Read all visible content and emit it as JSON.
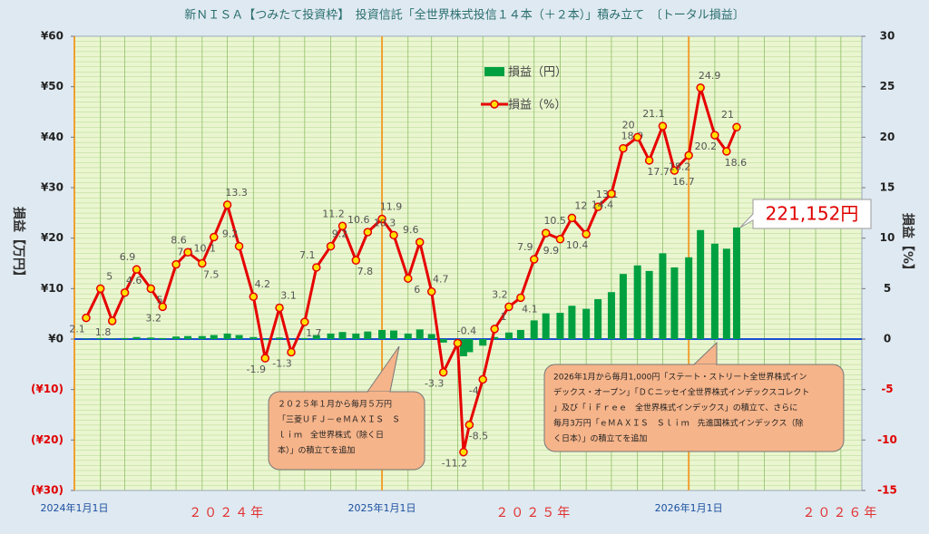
{
  "chart_data": {
    "type": "bar_line",
    "title": "新ＮＩＳＡ【つみたて投資枠】　投資信託「全世界株式投信１４本（＋２本）」積み立て　〔トータル損益〕",
    "y_label": "損益【万円】",
    "y2_label": "損益【%】",
    "x": [
      "2024-01-15",
      "2024-02-01",
      "2024-02-15",
      "2024-03-01",
      "2024-03-15",
      "2024-04-01",
      "2024-04-15",
      "2024-05-01",
      "2024-05-15",
      "2024-06-01",
      "2024-06-15",
      "2024-07-01",
      "2024-07-15",
      "2024-08-01",
      "2024-08-15",
      "2024-09-01",
      "2024-09-15",
      "2024-10-01",
      "2024-10-15",
      "2024-11-01",
      "2024-11-15",
      "2024-12-01",
      "2024-12-15",
      "2025-01-01",
      "2025-01-15",
      "2025-02-01",
      "2025-02-15",
      "2025-03-01",
      "2025-03-15",
      "2025-04-01",
      "2025-04-08",
      "2025-04-15",
      "2025-05-01",
      "2025-05-15",
      "2025-06-01",
      "2025-06-15",
      "2025-07-01",
      "2025-07-15",
      "2025-08-01",
      "2025-08-15",
      "2025-09-01",
      "2025-09-15",
      "2025-10-01",
      "2025-10-15",
      "2025-11-01",
      "2025-11-15",
      "2025-12-01",
      "2025-12-15",
      "2026-01-01",
      "2026-01-15",
      "2026-02-01",
      "2026-02-15",
      "2026-02-27"
    ],
    "series": [
      {
        "name": "損益（円）",
        "color": "#00a040",
        "axis": "y",
        "values": [
          0.1,
          0.2,
          0.1,
          0.2,
          0.4,
          0.3,
          0.2,
          0.5,
          0.6,
          0.6,
          0.8,
          1.1,
          0.8,
          0.4,
          -0.2,
          0.3,
          -0.1,
          0.2,
          0.8,
          1.1,
          1.4,
          1.1,
          1.5,
          1.8,
          1.7,
          1.1,
          1.9,
          1.0,
          -0.7,
          -0.1,
          -3.4,
          -2.6,
          -1.3,
          0.4,
          1.3,
          1.8,
          3.7,
          5.1,
          5.2,
          6.6,
          6.0,
          7.9,
          9.3,
          12.9,
          14.6,
          13.5,
          17.0,
          14.2,
          16.2,
          21.6,
          18.9,
          17.9,
          22.1152
        ]
      },
      {
        "name": "損益（%）",
        "color": "#e60000",
        "axis": "y2",
        "values": [
          2.1,
          5.0,
          1.8,
          4.6,
          6.9,
          5.0,
          3.2,
          7.4,
          8.6,
          7.5,
          10.1,
          13.3,
          9.2,
          4.2,
          -1.9,
          3.1,
          -1.3,
          1.7,
          7.1,
          9.2,
          11.2,
          7.8,
          10.6,
          11.9,
          10.3,
          6.0,
          9.6,
          4.7,
          -3.3,
          -0.4,
          -11.2,
          -8.5,
          -4.0,
          1.0,
          3.2,
          4.1,
          7.9,
          10.5,
          9.9,
          12.0,
          10.4,
          13.1,
          14.4,
          18.9,
          20.0,
          17.7,
          21.1,
          16.7,
          18.2,
          24.9,
          20.2,
          18.6,
          21.0
        ]
      }
    ],
    "xlim": [
      "2024-01-01",
      "2026-07-26"
    ],
    "xticks": [
      {
        "value": "2024-01-01",
        "label": "2024年1月1日"
      },
      {
        "value": "2025-01-01",
        "label": "2025年1月1日"
      },
      {
        "value": "2026-01-01",
        "label": "2026年1月1日"
      }
    ],
    "year_ticks": [
      {
        "value": "2024-07-01",
        "label": "２０２４年"
      },
      {
        "value": "2025-07-01",
        "label": "２０２５年"
      },
      {
        "value": "2026-07-01",
        "label": "２０２６年"
      }
    ],
    "ylim": [
      -30,
      60
    ],
    "yticks": [
      {
        "value": 60,
        "label": "¥60"
      },
      {
        "value": 50,
        "label": "¥50"
      },
      {
        "value": 40,
        "label": "¥40"
      },
      {
        "value": 30,
        "label": "¥30"
      },
      {
        "value": 20,
        "label": "¥20"
      },
      {
        "value": 10,
        "label": "¥10"
      },
      {
        "value": 0,
        "label": "¥0"
      },
      {
        "value": -10,
        "label": "(¥10)"
      },
      {
        "value": -20,
        "label": "(¥20)"
      },
      {
        "value": -30,
        "label": "(¥30)"
      }
    ],
    "y2lim": [
      -15,
      30
    ],
    "y2ticks": [
      30,
      25,
      20,
      15,
      10,
      5,
      0,
      -5,
      -10,
      -15
    ],
    "annotations": [
      {
        "lines": [
          "２０２５年１月から毎月５万円",
          "「三菱ＵＦＪ－ｅＭＡＸＩＳ　Ｓ",
          "ｌｉｍ　全世界株式（除く日",
          "本）」の積立てを追加"
        ]
      },
      {
        "lines": [
          "2026年1月から毎月1,000円「ステート・ストリート全世界株式イン",
          "デックス・オープン」「ＤＣニッセイ全世界株式インデックスコレクト",
          "」及び「ｉＦｒｅｅ　全世界株式インデックス」の積立て、さらに",
          "毎月3万円「ｅＭＡＸＩＳ　Ｓｌｉｍ　先進国株式インデックス（除",
          "く日本）」の積立てを追加"
        ]
      }
    ],
    "last_label": "221,152円"
  }
}
